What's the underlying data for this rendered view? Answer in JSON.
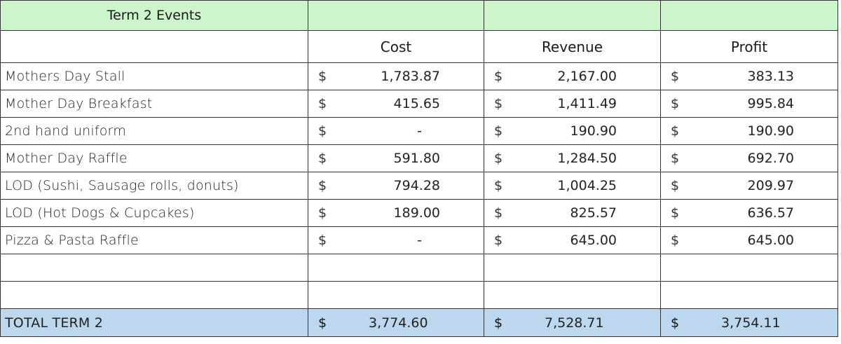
{
  "header": {
    "title": "Term 2 Events",
    "columns": [
      "Cost",
      "Revenue",
      "Profit"
    ]
  },
  "currency": "$",
  "rows": [
    {
      "event": "Mothers Day Stall",
      "cost": "1,783.87",
      "revenue": "2,167.00",
      "profit": "383.13"
    },
    {
      "event": "Mother Day Breakfast",
      "cost": "415.65",
      "revenue": "1,411.49",
      "profit": "995.84"
    },
    {
      "event": "2nd hand uniform",
      "cost": "-",
      "revenue": "190.90",
      "profit": "190.90"
    },
    {
      "event": "Mother Day Raffle",
      "cost": "591.80",
      "revenue": "1,284.50",
      "profit": "692.70"
    },
    {
      "event": "LOD (Sushi, Sausage rolls, donuts)",
      "cost": "794.28",
      "revenue": "1,004.25",
      "profit": "209.97"
    },
    {
      "event": "LOD (Hot Dogs & Cupcakes)",
      "cost": "189.00",
      "revenue": "825.57",
      "profit": "636.57"
    },
    {
      "event": "Pizza & Pasta Raffle",
      "cost": "-",
      "revenue": "645.00",
      "profit": "645.00"
    }
  ],
  "total": {
    "label": "TOTAL TERM 2",
    "cost": "3,774.60",
    "revenue": "7,528.71",
    "profit": "3,754.11"
  },
  "colors": {
    "header_green": "#ccf5cc",
    "total_blue": "#bcd7ee",
    "grid": "#333333"
  }
}
